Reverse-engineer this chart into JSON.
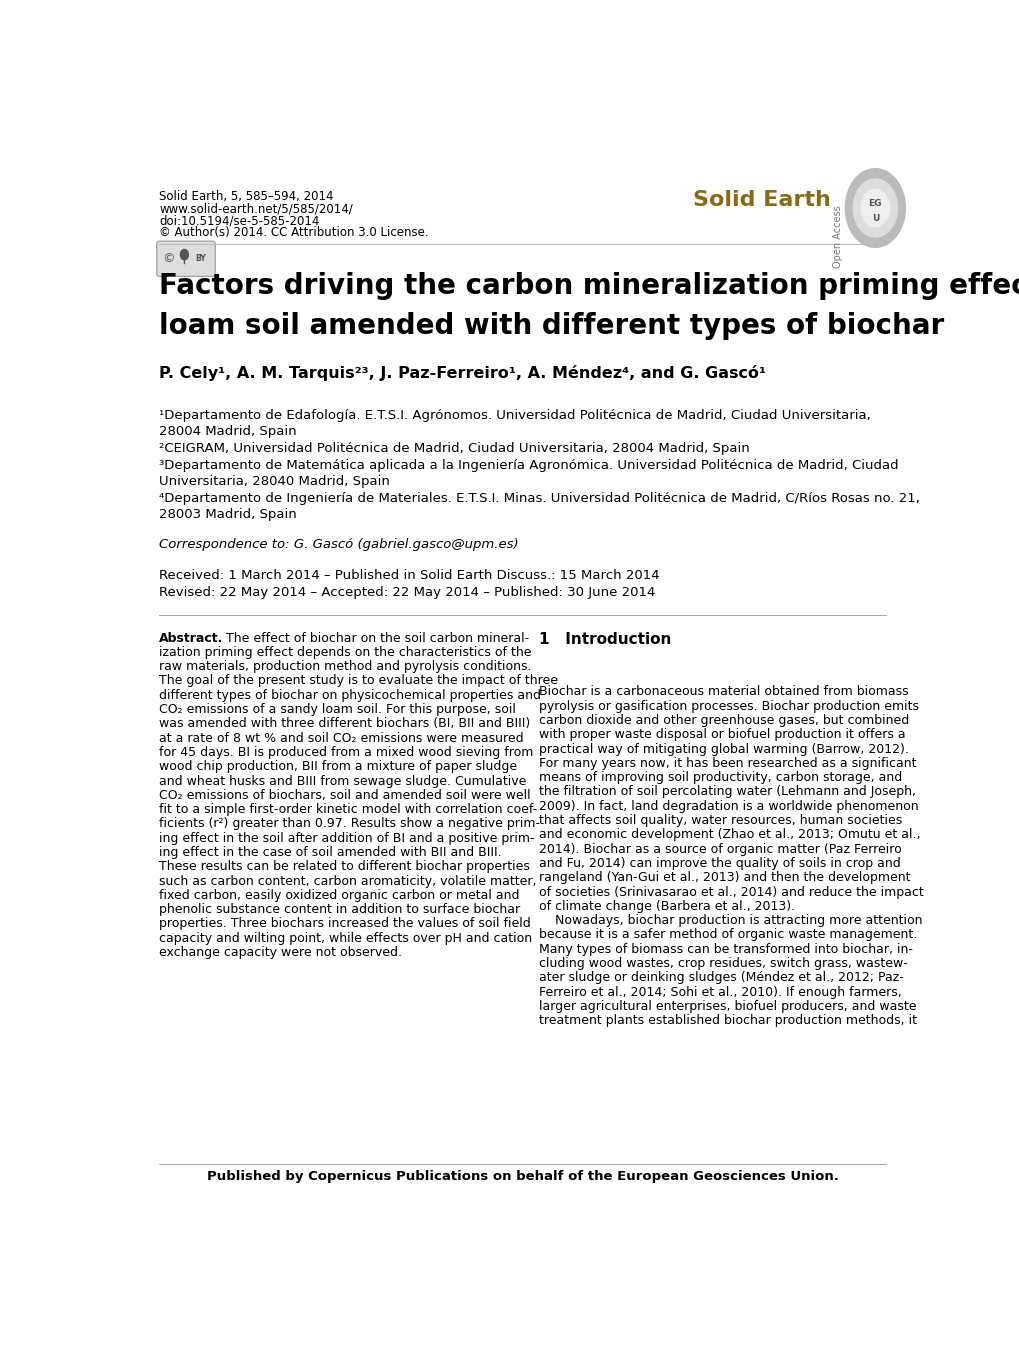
{
  "header_line1": "Solid Earth, 5, 585–594, 2014",
  "header_line2": "www.solid-earth.net/5/585/2014/",
  "header_line3": "doi:10.5194/se-5-585-2014",
  "header_line4": "© Author(s) 2014. CC Attribution 3.0 License.",
  "journal_name": "Solid Earth",
  "open_access_text": "Open Access",
  "title_line1": "Factors driving the carbon mineralization priming effect in a sandy",
  "title_line2": "loam soil amended with different types of biochar",
  "authors": "P. Cely¹, A. M. Tarquis²³, J. Paz-Ferreiro¹, A. Méndez⁴, and G. Gascó¹",
  "affil1": "¹Departamento de Edafología. E.T.S.I. Agrónomos. Universidad Politécnica de Madrid, Ciudad Universitaria,",
  "affil1b": "28004 Madrid, Spain",
  "affil2": "²CEIGRAM, Universidad Politécnica de Madrid, Ciudad Universitaria, 28004 Madrid, Spain",
  "affil3": "³Departamento de Matemática aplicada a la Ingeniería Agronómica. Universidad Politécnica de Madrid, Ciudad",
  "affil3b": "Universitaria, 28040 Madrid, Spain",
  "affil4": "⁴Departamento de Ingeniería de Materiales. E.T.S.I. Minas. Universidad Politécnica de Madrid, C/Ríos Rosas no. 21,",
  "affil4b": "28003 Madrid, Spain",
  "correspondence": "Correspondence to: G. Gascó (gabriel.gasco@upm.es)",
  "received": "Received: 1 March 2014 – Published in Solid Earth Discuss.: 15 March 2014",
  "revised": "Revised: 22 May 2014 – Accepted: 22 May 2014 – Published: 30 June 2014",
  "abstract_title": "Abstract.",
  "intro_title": "1   Introduction",
  "footer": "Published by Copernicus Publications on behalf of the European Geosciences Union.",
  "bg_color": "#ffffff",
  "text_color": "#000000",
  "journal_color": "#8B6914",
  "header_fontsize": 8.5,
  "title_fontsize": 20,
  "authors_fontsize": 11.5,
  "affil_fontsize": 9.5,
  "body_fontsize": 9.0,
  "intro_title_fontsize": 11.0,
  "abstract_lines": [
    "The effect of biochar on the soil carbon mineral-",
    "ization priming effect depends on the characteristics of the",
    "raw materials, production method and pyrolysis conditions.",
    "The goal of the present study is to evaluate the impact of three",
    "different types of biochar on physicochemical properties and",
    "CO₂ emissions of a sandy loam soil. For this purpose, soil",
    "was amended with three different biochars (BI, BII and BIII)",
    "at a rate of 8 wt % and soil CO₂ emissions were measured",
    "for 45 days. BI is produced from a mixed wood sieving from",
    "wood chip production, BII from a mixture of paper sludge",
    "and wheat husks and BIII from sewage sludge. Cumulative",
    "CO₂ emissions of biochars, soil and amended soil were well",
    "fit to a simple first-order kinetic model with correlation coef-",
    "ficients (r²) greater than 0.97. Results show a negative prim-",
    "ing effect in the soil after addition of BI and a positive prim-",
    "ing effect in the case of soil amended with BII and BIII.",
    "These results can be related to different biochar properties",
    "such as carbon content, carbon aromaticity, volatile matter,",
    "fixed carbon, easily oxidized organic carbon or metal and",
    "phenolic substance content in addition to surface biochar",
    "properties. Three biochars increased the values of soil field",
    "capacity and wilting point, while effects over pH and cation",
    "exchange capacity were not observed."
  ],
  "intro_lines": [
    "Biochar is a carbonaceous material obtained from biomass",
    "pyrolysis or gasification processes. Biochar production emits",
    "carbon dioxide and other greenhouse gases, but combined",
    "with proper waste disposal or biofuel production it offers a",
    "practical way of mitigating global warming (Barrow, 2012).",
    "For many years now, it has been researched as a significant",
    "means of improving soil productivity, carbon storage, and",
    "the filtration of soil percolating water (Lehmann and Joseph,",
    "2009). In fact, land degradation is a worldwide phenomenon",
    "that affects soil quality, water resources, human societies",
    "and economic development (Zhao et al., 2013; Omutu et al.,",
    "2014). Biochar as a source of organic matter (Paz Ferreiro",
    "and Fu, 2014) can improve the quality of soils in crop and",
    "rangeland (Yan-Gui et al., 2013) and then the development",
    "of societies (Srinivasarao et al., 2014) and reduce the impact",
    "of climate change (Barbera et al., 2013).",
    "    Nowadays, biochar production is attracting more attention",
    "because it is a safer method of organic waste management.",
    "Many types of biomass can be transformed into biochar, in-",
    "cluding wood wastes, crop residues, switch grass, wastew-",
    "ater sludge or deinking sludges (Méndez et al., 2012; Paz-",
    "Ferreiro et al., 2014; Sohi et al., 2010). If enough farmers,",
    "larger agricultural enterprises, biofuel producers, and waste",
    "treatment plants established biochar production methods, it"
  ]
}
